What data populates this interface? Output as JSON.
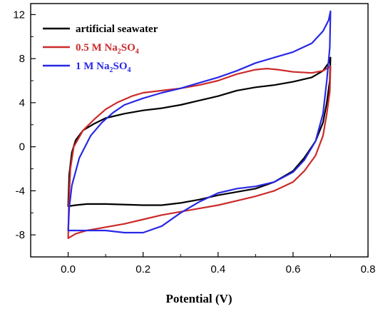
{
  "chart_data": {
    "type": "line",
    "xlabel": "Potential (V)",
    "ylabel": "",
    "xlim": [
      -0.1,
      0.8
    ],
    "ylim": [
      -10,
      13
    ],
    "xticks": [
      0.0,
      0.2,
      0.4,
      0.6,
      0.8
    ],
    "yticks": [
      -8,
      -4,
      0,
      4,
      8,
      12
    ],
    "xtick_labels": [
      "0.0",
      "0.2",
      "0.4",
      "0.6",
      "0.8"
    ],
    "ytick_labels": [
      "-8",
      "-4",
      "0",
      "4",
      "8",
      "12"
    ],
    "legend_position": "top-left",
    "series": [
      {
        "name": "artificial seawater",
        "legend": {
          "main": "artificial seawater",
          "sub": "",
          "tail": ""
        },
        "color": "#000000",
        "points": [
          [
            0.0,
            -5.4
          ],
          [
            0.003,
            -2.5
          ],
          [
            0.01,
            -0.5
          ],
          [
            0.02,
            0.6
          ],
          [
            0.04,
            1.5
          ],
          [
            0.07,
            2.1
          ],
          [
            0.1,
            2.6
          ],
          [
            0.15,
            3.0
          ],
          [
            0.2,
            3.3
          ],
          [
            0.25,
            3.5
          ],
          [
            0.3,
            3.8
          ],
          [
            0.35,
            4.2
          ],
          [
            0.4,
            4.6
          ],
          [
            0.45,
            5.1
          ],
          [
            0.5,
            5.4
          ],
          [
            0.55,
            5.6
          ],
          [
            0.6,
            5.9
          ],
          [
            0.65,
            6.3
          ],
          [
            0.68,
            6.9
          ],
          [
            0.695,
            7.6
          ],
          [
            0.7,
            8.1
          ],
          [
            0.698,
            6.0
          ],
          [
            0.69,
            4.0
          ],
          [
            0.68,
            2.2
          ],
          [
            0.66,
            0.5
          ],
          [
            0.63,
            -1.0
          ],
          [
            0.6,
            -2.2
          ],
          [
            0.55,
            -3.2
          ],
          [
            0.5,
            -3.8
          ],
          [
            0.45,
            -4.1
          ],
          [
            0.4,
            -4.4
          ],
          [
            0.35,
            -4.8
          ],
          [
            0.3,
            -5.1
          ],
          [
            0.25,
            -5.3
          ],
          [
            0.2,
            -5.3
          ],
          [
            0.1,
            -5.2
          ],
          [
            0.05,
            -5.2
          ],
          [
            0.02,
            -5.3
          ],
          [
            0.0,
            -5.4
          ]
        ]
      },
      {
        "name": "0.5 M Na2SO4",
        "legend": {
          "main": "0.5 M Na",
          "sub": "2",
          "tail": "SO",
          "sub2": "4"
        },
        "color": "#cc2a2a",
        "points": [
          [
            0.0,
            -8.3
          ],
          [
            0.002,
            -5.0
          ],
          [
            0.006,
            -2.0
          ],
          [
            0.015,
            0.0
          ],
          [
            0.04,
            1.5
          ],
          [
            0.07,
            2.5
          ],
          [
            0.1,
            3.4
          ],
          [
            0.13,
            4.0
          ],
          [
            0.17,
            4.6
          ],
          [
            0.2,
            4.9
          ],
          [
            0.25,
            5.1
          ],
          [
            0.3,
            5.3
          ],
          [
            0.35,
            5.6
          ],
          [
            0.4,
            6.0
          ],
          [
            0.45,
            6.6
          ],
          [
            0.5,
            7.0
          ],
          [
            0.53,
            7.1
          ],
          [
            0.56,
            7.0
          ],
          [
            0.6,
            6.8
          ],
          [
            0.65,
            6.7
          ],
          [
            0.68,
            6.9
          ],
          [
            0.7,
            7.3
          ],
          [
            0.698,
            5.0
          ],
          [
            0.69,
            3.0
          ],
          [
            0.68,
            1.0
          ],
          [
            0.66,
            -0.8
          ],
          [
            0.63,
            -2.2
          ],
          [
            0.6,
            -3.2
          ],
          [
            0.55,
            -4.0
          ],
          [
            0.5,
            -4.5
          ],
          [
            0.45,
            -4.9
          ],
          [
            0.4,
            -5.3
          ],
          [
            0.35,
            -5.6
          ],
          [
            0.3,
            -5.9
          ],
          [
            0.25,
            -6.2
          ],
          [
            0.2,
            -6.6
          ],
          [
            0.15,
            -7.0
          ],
          [
            0.1,
            -7.3
          ],
          [
            0.05,
            -7.6
          ],
          [
            0.02,
            -7.9
          ],
          [
            0.0,
            -8.3
          ]
        ]
      },
      {
        "name": "1 M Na2SO4",
        "legend": {
          "main": "1 M Na",
          "sub": "2",
          "tail": "SO",
          "sub2": "4"
        },
        "color": "#2828e6",
        "points": [
          [
            0.0,
            -7.6
          ],
          [
            0.003,
            -5.5
          ],
          [
            0.01,
            -3.5
          ],
          [
            0.03,
            -1.0
          ],
          [
            0.06,
            1.0
          ],
          [
            0.09,
            2.2
          ],
          [
            0.12,
            3.1
          ],
          [
            0.15,
            3.8
          ],
          [
            0.2,
            4.4
          ],
          [
            0.25,
            4.9
          ],
          [
            0.3,
            5.3
          ],
          [
            0.35,
            5.8
          ],
          [
            0.4,
            6.3
          ],
          [
            0.45,
            6.9
          ],
          [
            0.5,
            7.6
          ],
          [
            0.55,
            8.1
          ],
          [
            0.6,
            8.6
          ],
          [
            0.65,
            9.4
          ],
          [
            0.68,
            10.5
          ],
          [
            0.695,
            11.5
          ],
          [
            0.7,
            12.3
          ],
          [
            0.698,
            9.0
          ],
          [
            0.69,
            6.0
          ],
          [
            0.68,
            3.0
          ],
          [
            0.66,
            0.5
          ],
          [
            0.63,
            -1.2
          ],
          [
            0.6,
            -2.3
          ],
          [
            0.55,
            -3.2
          ],
          [
            0.5,
            -3.6
          ],
          [
            0.45,
            -3.8
          ],
          [
            0.4,
            -4.2
          ],
          [
            0.35,
            -5.0
          ],
          [
            0.3,
            -6.0
          ],
          [
            0.25,
            -7.2
          ],
          [
            0.2,
            -7.8
          ],
          [
            0.15,
            -7.8
          ],
          [
            0.1,
            -7.6
          ],
          [
            0.05,
            -7.6
          ],
          [
            0.02,
            -7.6
          ],
          [
            0.0,
            -7.6
          ]
        ]
      }
    ]
  }
}
